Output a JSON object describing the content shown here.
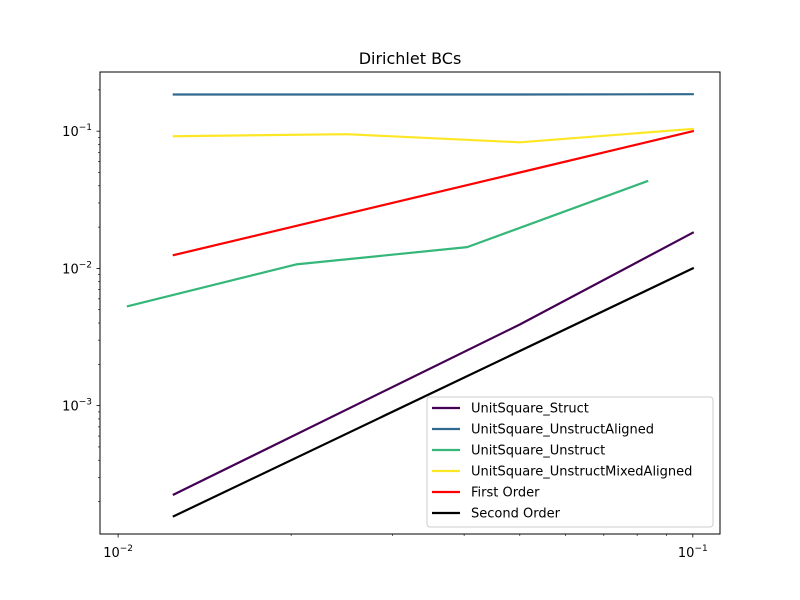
{
  "chart_data": {
    "type": "line",
    "title": "Dirichlet BCs",
    "xlabel": "",
    "ylabel": "",
    "xscale": "log",
    "yscale": "log",
    "xlim": [
      0.0093,
      0.1115
    ],
    "ylim": [
      0.000116,
      0.27
    ],
    "grid": false,
    "legend_position": "lower right",
    "x_major_ticks": [
      {
        "value": 0.01,
        "base": "10",
        "exp": "−2"
      },
      {
        "value": 0.1,
        "base": "10",
        "exp": "−1"
      }
    ],
    "y_major_ticks": [
      {
        "value": 0.001,
        "base": "10",
        "exp": "−3"
      },
      {
        "value": 0.01,
        "base": "10",
        "exp": "−2"
      },
      {
        "value": 0.1,
        "base": "10",
        "exp": "−1"
      }
    ],
    "series": [
      {
        "name": "UnitSquare_Struct",
        "color": "#440154",
        "x": [
          0.0125,
          0.05,
          0.1
        ],
        "y": [
          0.000225,
          0.0039,
          0.0182
        ]
      },
      {
        "name": "UnitSquare_UnstructAligned",
        "color": "#31688e",
        "x": [
          0.0125,
          0.05,
          0.1
        ],
        "y": [
          0.185,
          0.185,
          0.186
        ]
      },
      {
        "name": "UnitSquare_Unstruct",
        "color": "#35b779",
        "x": [
          0.0104,
          0.0204,
          0.0405,
          0.0833
        ],
        "y": [
          0.0053,
          0.0107,
          0.0143,
          0.0432
        ]
      },
      {
        "name": "UnitSquare_UnstructMixedAligned",
        "color": "#fde725",
        "x": [
          0.0125,
          0.025,
          0.05,
          0.1
        ],
        "y": [
          0.092,
          0.095,
          0.083,
          0.104
        ]
      },
      {
        "name": "First Order",
        "color": "#ff0000",
        "x": [
          0.0125,
          0.1
        ],
        "y": [
          0.0125,
          0.1
        ]
      },
      {
        "name": "Second Order",
        "color": "#000000",
        "x": [
          0.0125,
          0.1
        ],
        "y": [
          0.00015625,
          0.01
        ]
      }
    ]
  }
}
